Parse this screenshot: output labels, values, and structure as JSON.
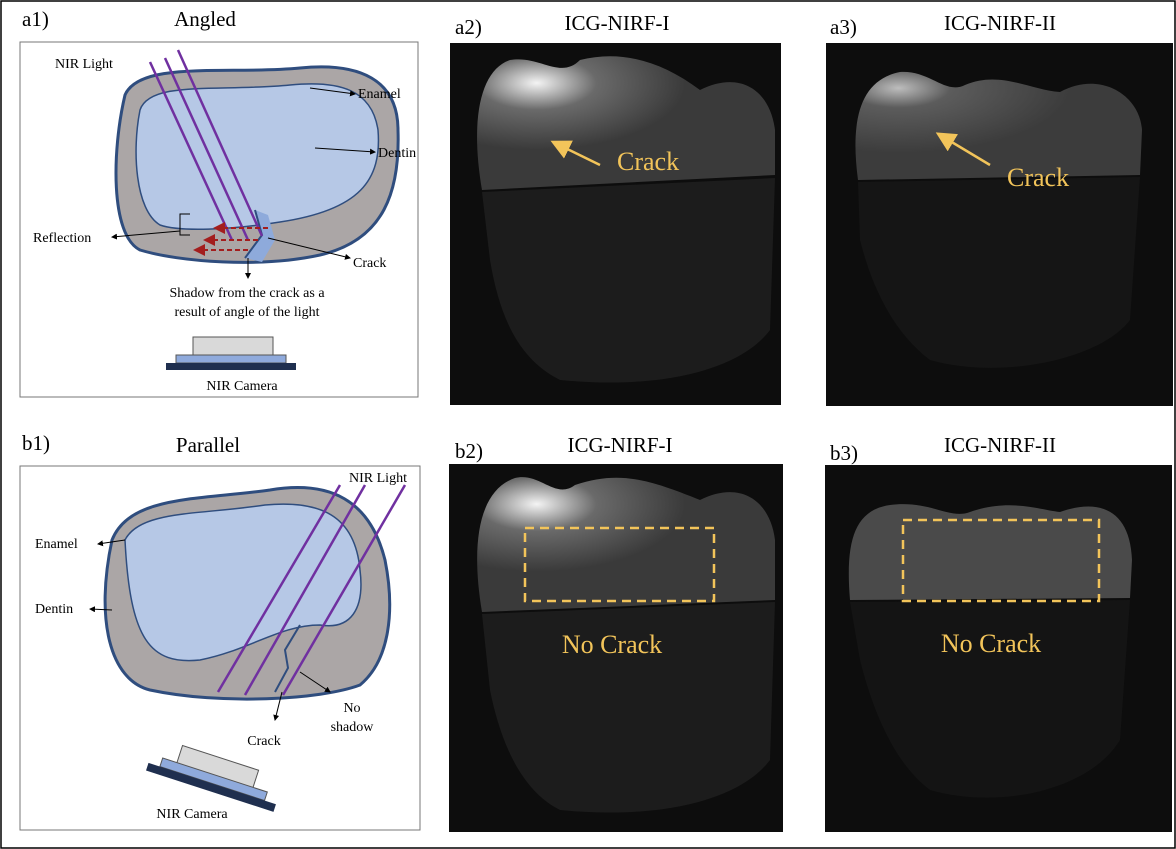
{
  "panels": [
    {
      "tag": "a1)",
      "title": "Angled",
      "labels": {
        "light": "NIR Light",
        "enamel": "Enamel",
        "dentin": "Dentin",
        "reflection": "Reflection",
        "crack": "Crack",
        "shadow": [
          "Shadow from the crack as a",
          "result of angle of the light"
        ],
        "camera": "NIR Camera"
      }
    },
    {
      "tag": "a2)",
      "title": "ICG-NIRF-I",
      "labels": {
        "crack": "Crack"
      }
    },
    {
      "tag": "a3)",
      "title": "ICG-NIRF-II",
      "labels": {
        "crack": "Crack"
      }
    },
    {
      "tag": "b1)",
      "title": "Parallel",
      "labels": {
        "light": "NIR Light",
        "enamel": "Enamel",
        "dentin": "Dentin",
        "crack": "Crack",
        "shadow": [
          "No",
          "shadow"
        ],
        "camera": "NIR Camera"
      }
    },
    {
      "tag": "b2)",
      "title": "ICG-NIRF-I",
      "labels": {
        "crack": "No Crack"
      }
    },
    {
      "tag": "b3)",
      "title": "ICG-NIRF-II",
      "labels": {
        "crack": "No Crack"
      }
    }
  ]
}
